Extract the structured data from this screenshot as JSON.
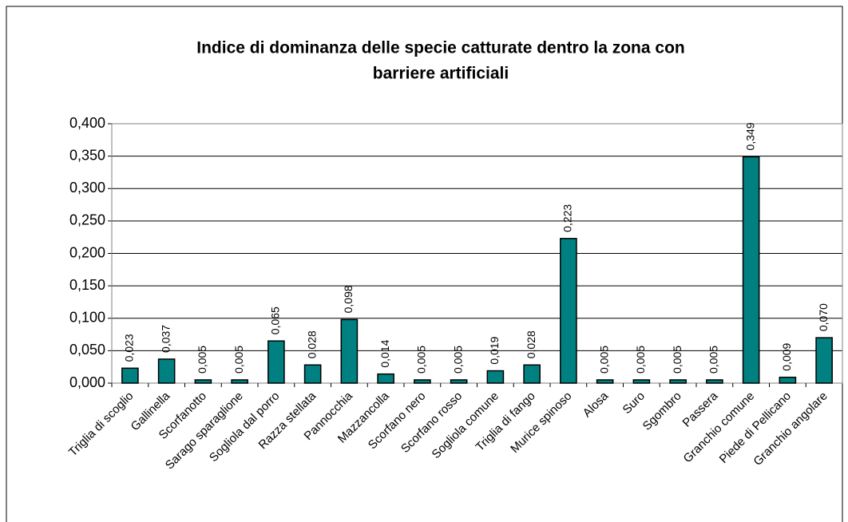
{
  "chart_data": {
    "type": "bar",
    "title": [
      "Indice di dominanza delle specie catturate dentro la zona con",
      "barriere artificiali"
    ],
    "categories": [
      "Triglia di scoglio",
      "Gallinella",
      "Scorfanotto",
      "Sarago sparaglione",
      "Sogliola dal porro",
      "Razza stellata",
      "Pannocchia",
      "Mazzancolla",
      "Scorfano nero",
      "Scorfano rosso",
      "Sogliola comune",
      "Triglia di fango",
      "Murice spinoso",
      "Alosa",
      "Suro",
      "Sgombro",
      "Passera",
      "Granchio comune",
      "Piede di Pellicano",
      "Granchio angolare"
    ],
    "values": [
      0.023,
      0.037,
      0.005,
      0.005,
      0.065,
      0.028,
      0.098,
      0.014,
      0.005,
      0.005,
      0.019,
      0.028,
      0.223,
      0.005,
      0.005,
      0.005,
      0.005,
      0.349,
      0.009,
      0.07
    ],
    "value_labels": [
      "0,023",
      "0,037",
      "0,005",
      "0,005",
      "0,065",
      "0,028",
      "0,098",
      "0,014",
      "0,005",
      "0,005",
      "0,019",
      "0,028",
      "0,223",
      "0,005",
      "0,005",
      "0,005",
      "0,005",
      "0,349",
      "0,009",
      "0,070"
    ],
    "color": "#008080",
    "ylim": [
      0,
      0.4
    ],
    "yticks": [
      {
        "value": 0,
        "label": "0,000"
      },
      {
        "value": 0.05,
        "label": "0,050"
      },
      {
        "value": 0.1,
        "label": "0,100"
      },
      {
        "value": 0.15,
        "label": "0,150"
      },
      {
        "value": 0.2,
        "label": "0,200"
      },
      {
        "value": 0.25,
        "label": "0,250"
      },
      {
        "value": 0.3,
        "label": "0,300"
      },
      {
        "value": 0.35,
        "label": "0,350"
      },
      {
        "value": 0.4,
        "label": "0,400"
      }
    ],
    "grid": true
  }
}
